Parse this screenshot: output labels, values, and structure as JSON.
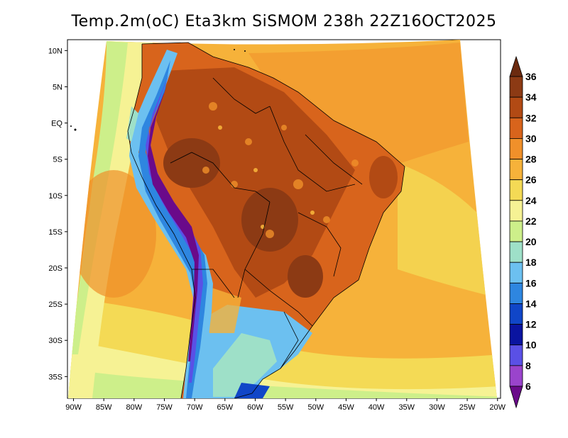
{
  "title": "Temp.2m(oC) Eta3km SiSMOM 238h 22Z16OCT2025",
  "map": {
    "lat_ticks": [
      "10N",
      "5N",
      "EQ",
      "5S",
      "10S",
      "15S",
      "20S",
      "25S",
      "30S",
      "35S"
    ],
    "lon_ticks": [
      "90W",
      "85W",
      "80W",
      "75W",
      "70W",
      "65W",
      "60W",
      "55W",
      "50W",
      "45W",
      "40W",
      "35W",
      "30W",
      "25W",
      "20W"
    ],
    "lat_range": [
      -38,
      11.5
    ],
    "lon_range": [
      -91,
      -19.5
    ]
  },
  "colorbar": {
    "labels": [
      "36",
      "34",
      "32",
      "30",
      "28",
      "26",
      "24",
      "22",
      "20",
      "18",
      "16",
      "14",
      "12",
      "10",
      "8",
      "6"
    ],
    "colors": [
      "#6b2a0f",
      "#8c3a14",
      "#b24a14",
      "#d8641c",
      "#f0902a",
      "#f6b23a",
      "#f4da55",
      "#f6f294",
      "#cdef8a",
      "#9ee0c8",
      "#6cc0f0",
      "#2e86e0",
      "#1046c8",
      "#0a14a0",
      "#5a50e6",
      "#9a44cc",
      "#6a0a8a"
    ]
  }
}
